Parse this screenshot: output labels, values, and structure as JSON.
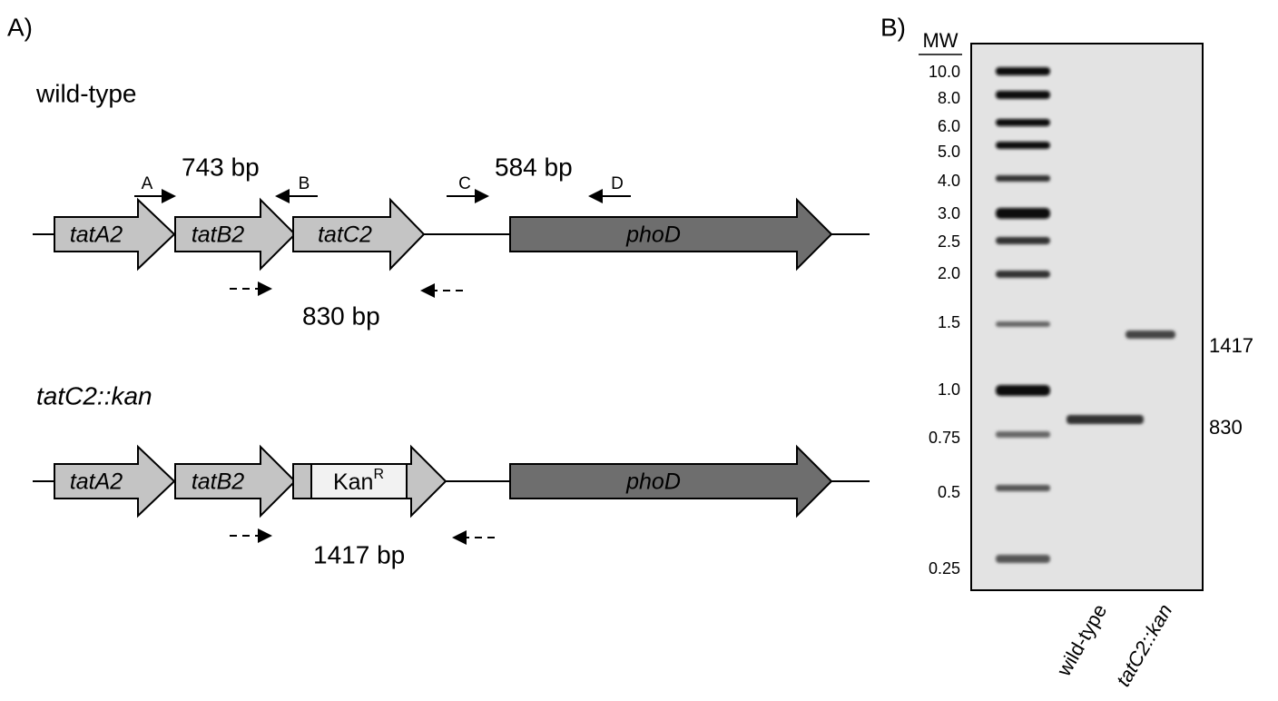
{
  "panel_a": {
    "label": "A)",
    "wild_type": {
      "title": "wild-type",
      "genes": [
        "tatA2",
        "tatB2",
        "tatC2",
        "phoD"
      ],
      "primers": [
        "A",
        "B",
        "C",
        "D"
      ],
      "products": [
        "743 bp",
        "584 bp",
        "830 bp"
      ]
    },
    "mutant": {
      "title": "tatC2::kan",
      "genes": [
        "tatA2",
        "tatB2",
        "phoD"
      ],
      "cassette": "Kan",
      "cassette_superscript": "R",
      "products": [
        "1417 bp"
      ]
    }
  },
  "panel_b": {
    "label": "B)",
    "marker_header": "MW",
    "ladder": [
      "10.0",
      "8.0",
      "6.0",
      "5.0",
      "4.0",
      "3.0",
      "2.5",
      "2.0",
      "1.5",
      "1.0",
      "0.75",
      "0.5",
      "0.25"
    ],
    "lanes": [
      "wild-type",
      "tatC2::kan"
    ],
    "band_labels": [
      "1417",
      "830"
    ]
  }
}
